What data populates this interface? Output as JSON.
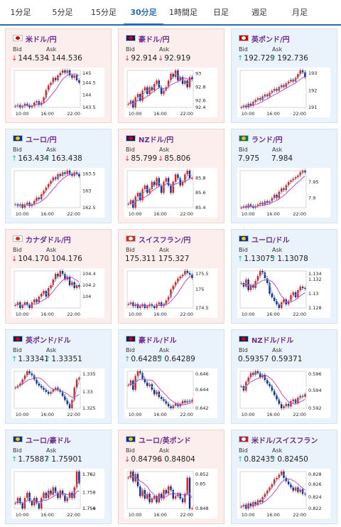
{
  "tabs": [
    "1分足",
    "5分足",
    "15分足",
    "30分足",
    "1時間足",
    "日足",
    "週足",
    "月足"
  ],
  "active_tab": 3,
  "bid_label": "Bid",
  "ask_label": "Ask",
  "time_labels": [
    "10:00",
    "16:00",
    "22:00"
  ],
  "pairs": [
    {
      "name": "米ドル/円",
      "bid": "144.534",
      "ask": "144.536",
      "dir": "down",
      "bg": "red",
      "yticks": [
        "145",
        "144.5",
        "144",
        "143.5"
      ],
      "series": [
        143.55,
        143.6,
        143.5,
        143.55,
        143.65,
        143.6,
        143.5,
        143.55,
        143.7,
        143.75,
        143.6,
        143.7,
        143.9,
        144.2,
        144.4,
        144.5,
        144.7,
        144.6,
        144.8,
        144.9,
        145.0,
        144.9,
        145.0,
        144.8,
        144.7,
        144.8,
        144.6,
        144.5
      ]
    },
    {
      "name": "豪ドル/円",
      "bid": "92.914",
      "ask": "92.919",
      "dir": "down",
      "bg": "red",
      "yticks": [
        "93",
        "92.8",
        "92.6",
        "92.4"
      ],
      "series": [
        92.55,
        92.6,
        92.5,
        92.65,
        92.7,
        92.6,
        92.75,
        92.8,
        92.7,
        92.8,
        92.75,
        92.85,
        92.9,
        92.8,
        92.7,
        92.75,
        92.8,
        92.9,
        93.0,
        92.95,
        93.05,
        92.9,
        92.95,
        92.85,
        92.9,
        92.8,
        92.95,
        92.92
      ]
    },
    {
      "name": "英ポンド/円",
      "bid": "192.729",
      "ask": "192.736",
      "dir": "up",
      "bg": "blue",
      "yticks": [
        "193",
        "192",
        "191"
      ],
      "series": [
        191.1,
        191.2,
        191.1,
        191.3,
        191.2,
        191.4,
        191.5,
        191.6,
        191.5,
        191.7,
        191.8,
        191.7,
        191.9,
        192.0,
        192.1,
        192.0,
        192.2,
        192.3,
        192.2,
        192.4,
        192.5,
        192.6,
        192.5,
        192.7,
        192.9,
        193.1,
        193.0,
        192.73
      ]
    },
    {
      "name": "ユーロ/円",
      "bid": "163.434",
      "ask": "163.438",
      "dir": "up",
      "bg": "blue",
      "yticks": [
        "163.5",
        "163",
        "162.5"
      ],
      "series": [
        162.6,
        162.55,
        162.6,
        162.5,
        162.6,
        162.65,
        162.55,
        162.6,
        162.7,
        162.8,
        162.75,
        162.9,
        163.0,
        163.1,
        163.2,
        163.3,
        163.4,
        163.35,
        163.5,
        163.45,
        163.55,
        163.5,
        163.6,
        163.5,
        163.45,
        163.55,
        163.5,
        163.43
      ]
    },
    {
      "name": "NZドル/円",
      "bid": "85.799",
      "ask": "85.806",
      "dir": "down",
      "bg": "red",
      "yticks": [
        "85.8",
        "85.6",
        "85.4"
      ],
      "series": [
        85.45,
        85.5,
        85.4,
        85.55,
        85.6,
        85.5,
        85.65,
        85.7,
        85.6,
        85.65,
        85.75,
        85.7,
        85.8,
        85.7,
        85.6,
        85.75,
        85.8,
        85.7,
        85.6,
        85.75,
        85.85,
        85.8,
        85.7,
        85.75,
        85.85,
        85.9,
        85.8,
        85.8
      ]
    },
    {
      "name": "ランド/円",
      "bid": "7.975",
      "ask": "7.984",
      "dir": "none",
      "bg": "blue",
      "yticks": [
        "7.95",
        "7.9"
      ],
      "series": [
        7.87,
        7.875,
        7.87,
        7.88,
        7.875,
        7.87,
        7.875,
        7.88,
        7.885,
        7.88,
        7.89,
        7.885,
        7.89,
        7.9,
        7.91,
        7.9,
        7.92,
        7.93,
        7.925,
        7.94,
        7.95,
        7.955,
        7.96,
        7.965,
        7.97,
        7.98,
        7.985,
        7.98
      ]
    },
    {
      "name": "カナダドル/円",
      "bid": "104.170",
      "ask": "104.176",
      "dir": "down",
      "bg": "red",
      "yticks": [
        "104.4",
        "104.2",
        "104"
      ],
      "series": [
        103.85,
        103.9,
        103.8,
        103.85,
        103.9,
        103.85,
        103.8,
        103.9,
        103.95,
        103.9,
        104.0,
        104.05,
        104.1,
        104.0,
        104.15,
        104.2,
        104.3,
        104.4,
        104.35,
        104.45,
        104.4,
        104.3,
        104.35,
        104.2,
        104.25,
        104.15,
        104.2,
        104.17
      ]
    },
    {
      "name": "スイスフラン/円",
      "bid": "175.311",
      "ask": "175.327",
      "dir": "none",
      "bg": "red",
      "yticks": [
        "175.5",
        "175",
        "174.5"
      ],
      "series": [
        174.6,
        174.65,
        174.55,
        174.6,
        174.5,
        174.55,
        174.6,
        174.5,
        174.55,
        174.6,
        174.55,
        174.5,
        174.6,
        174.65,
        174.55,
        174.6,
        174.7,
        174.8,
        175.0,
        175.1,
        175.2,
        175.3,
        175.35,
        175.4,
        175.5,
        175.45,
        175.4,
        175.31
      ]
    },
    {
      "name": "ユーロ/ドル",
      "bid": "1.13075",
      "ask": "1.13078",
      "dir": "up",
      "bg": "blue",
      "yticks": [
        "1.134",
        "1.132",
        "1.13",
        "1.128"
      ],
      "series": [
        1.1315,
        1.131,
        1.132,
        1.1305,
        1.1312,
        1.1308,
        1.1318,
        1.1325,
        1.1332,
        1.133,
        1.1322,
        1.1315,
        1.13,
        1.1295,
        1.129,
        1.1285,
        1.128,
        1.1288,
        1.1292,
        1.1285,
        1.129,
        1.1298,
        1.1302,
        1.1295,
        1.1305,
        1.131,
        1.1308,
        1.1307
      ]
    },
    {
      "name": "英ポンド/ドル",
      "bid": "1.33341",
      "ask": "1.33351",
      "dir": "up",
      "bg": "blue",
      "yticks": [
        "1.335",
        "1.33",
        "1.325"
      ],
      "series": [
        1.331,
        1.3315,
        1.332,
        1.333,
        1.334,
        1.335,
        1.3345,
        1.334,
        1.333,
        1.332,
        1.3315,
        1.331,
        1.3305,
        1.33,
        1.3295,
        1.33,
        1.3305,
        1.331,
        1.3305,
        1.33,
        1.329,
        1.328,
        1.327,
        1.326,
        1.328,
        1.331,
        1.333,
        1.3334
      ]
    },
    {
      "name": "豪ドル/ドル",
      "bid": "0.64285",
      "ask": "0.64289",
      "dir": "up",
      "bg": "blue",
      "yticks": [
        "0.646",
        "0.644",
        "0.642"
      ],
      "series": [
        0.6445,
        0.645,
        0.644,
        0.6455,
        0.646,
        0.6458,
        0.6452,
        0.6448,
        0.6444,
        0.6446,
        0.644,
        0.6435,
        0.6438,
        0.6432,
        0.643,
        0.6428,
        0.6425,
        0.6422,
        0.642,
        0.6423,
        0.6425,
        0.6422,
        0.6425,
        0.6428,
        0.6426,
        0.6428,
        0.6427,
        0.6429
      ]
    },
    {
      "name": "NZドル/ドル",
      "bid": "0.59357",
      "ask": "0.59371",
      "dir": "none",
      "bg": "blue",
      "yticks": [
        "0.596",
        "0.594",
        "0.592"
      ],
      "series": [
        0.5945,
        0.594,
        0.595,
        0.5955,
        0.596,
        0.5958,
        0.5962,
        0.596,
        0.5955,
        0.5958,
        0.5952,
        0.5948,
        0.5945,
        0.594,
        0.5935,
        0.593,
        0.5925,
        0.592,
        0.5922,
        0.5925,
        0.5922,
        0.5928,
        0.593,
        0.5926,
        0.5932,
        0.5934,
        0.5933,
        0.5936
      ]
    },
    {
      "name": "ユーロ/豪ドル",
      "bid": "1.75887",
      "ask": "1.75901",
      "dir": "up",
      "bg": "blue",
      "yticks": [
        "1.762",
        "1.76",
        "1.758",
        "1.756",
        "1.754"
      ],
      "series": [
        1.757,
        1.7575,
        1.757,
        1.7565,
        1.7575,
        1.758,
        1.7572,
        1.7568,
        1.7575,
        1.757,
        1.7565,
        1.7575,
        1.758,
        1.7575,
        1.7582,
        1.7578,
        1.7585,
        1.758,
        1.7575,
        1.7582,
        1.7578,
        1.7572,
        1.7575,
        1.758,
        1.7575,
        1.7585,
        1.76,
        1.7589
      ]
    },
    {
      "name": "ユーロ/英ポンド",
      "bid": "0.84796",
      "ask": "0.84804",
      "dir": "down",
      "bg": "red",
      "yticks": [
        "0.852",
        "0.85",
        "0.848"
      ],
      "series": [
        0.8505,
        0.851,
        0.8502,
        0.8508,
        0.8498,
        0.849,
        0.8495,
        0.8488,
        0.8492,
        0.8485,
        0.8488,
        0.849,
        0.8485,
        0.8492,
        0.8488,
        0.8495,
        0.8492,
        0.8498,
        0.8495,
        0.8488,
        0.849,
        0.8492,
        0.8488,
        0.8485,
        0.8492,
        0.8505,
        0.848,
        0.848
      ]
    },
    {
      "name": "米ドル/スイスフラン",
      "bid": "0.82435",
      "ask": "0.82450",
      "dir": "up",
      "bg": "blue",
      "yticks": [
        "0.828",
        "0.826",
        "0.824",
        "0.822"
      ],
      "series": [
        0.8225,
        0.8228,
        0.8222,
        0.823,
        0.8225,
        0.8232,
        0.8228,
        0.8235,
        0.8232,
        0.824,
        0.8245,
        0.825,
        0.8255,
        0.826,
        0.8268,
        0.827,
        0.8275,
        0.828,
        0.827,
        0.8265,
        0.826,
        0.8255,
        0.825,
        0.8255,
        0.8248,
        0.8252,
        0.8245,
        0.8244
      ]
    }
  ]
}
